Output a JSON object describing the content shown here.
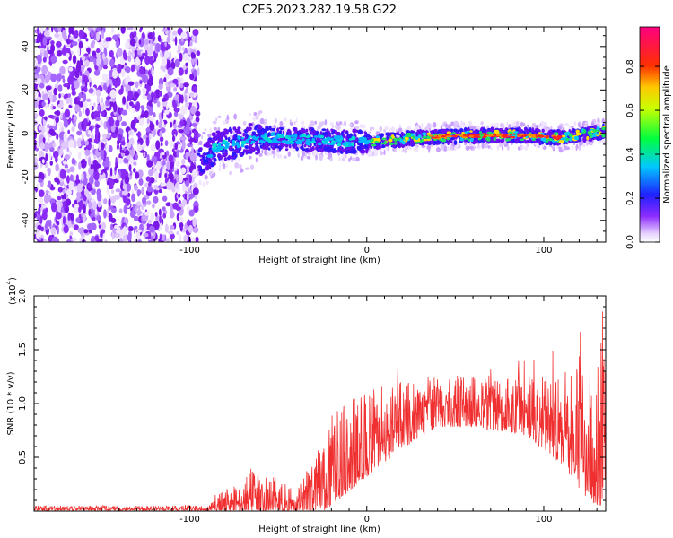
{
  "title": "C2E5.2023.282.19.58.G22",
  "chart_data": [
    {
      "type": "heatmap",
      "xlabel": "Height of straight line (km)",
      "ylabel": "Frequency (Hz)",
      "xlim": [
        -188,
        135
      ],
      "ylim": [
        -50,
        49
      ],
      "xticks": [
        -100,
        0,
        100
      ],
      "yticks": [
        -40,
        -20,
        0,
        20,
        40
      ],
      "colorbar": {
        "label": "Normalized spectral amplitude",
        "range": [
          0,
          0.98
        ],
        "ticks": [
          0.0,
          0.2,
          0.4,
          0.6,
          0.8
        ]
      },
      "description_points": {
        "noise_region_x": [
          -188,
          -95
        ],
        "signal_center_freq": [
          {
            "x": -95,
            "y": -14
          },
          {
            "x": -85,
            "y": -6
          },
          {
            "x": -60,
            "y": -2
          },
          {
            "x": -30,
            "y": -3
          },
          {
            "x": 0,
            "y": -4
          },
          {
            "x": 30,
            "y": -2
          },
          {
            "x": 60,
            "y": -1
          },
          {
            "x": 90,
            "y": -1
          },
          {
            "x": 110,
            "y": -2
          },
          {
            "x": 135,
            "y": 1
          }
        ],
        "peak_amplitude_band_x": [
          35,
          110
        ]
      }
    },
    {
      "type": "line",
      "xlabel": "Height of straight line (km)",
      "ylabel": "SNR (10 * v/v)",
      "multiplier": "(x10",
      "multiplier_exp": "4",
      "xlim": [
        -188,
        135
      ],
      "ylim": [
        0,
        2.0
      ],
      "xticks": [
        -100,
        0,
        100
      ],
      "yticks": [
        0.5,
        1.0,
        1.5,
        2.0
      ],
      "series": [
        {
          "color": "#f03030",
          "envelope": [
            {
              "x": -188,
              "base": 0.02,
              "amp": 0.03
            },
            {
              "x": -90,
              "base": 0.02,
              "amp": 0.03
            },
            {
              "x": -85,
              "base": 0.04,
              "amp": 0.1
            },
            {
              "x": -65,
              "base": 0.1,
              "amp": 0.3
            },
            {
              "x": -50,
              "base": 0.08,
              "amp": 0.22
            },
            {
              "x": -40,
              "base": 0.05,
              "amp": 0.12
            },
            {
              "x": -30,
              "base": 0.15,
              "amp": 0.35
            },
            {
              "x": -20,
              "base": 0.35,
              "amp": 0.55
            },
            {
              "x": 0,
              "base": 0.6,
              "amp": 0.5
            },
            {
              "x": 20,
              "base": 0.8,
              "amp": 0.4
            },
            {
              "x": 40,
              "base": 0.95,
              "amp": 0.3
            },
            {
              "x": 60,
              "base": 0.95,
              "amp": 0.3
            },
            {
              "x": 90,
              "base": 0.9,
              "amp": 0.35
            },
            {
              "x": 110,
              "base": 0.75,
              "amp": 0.55
            },
            {
              "x": 125,
              "base": 0.6,
              "amp": 0.9
            },
            {
              "x": 135,
              "base": 0.55,
              "amp": 1.0
            }
          ]
        }
      ]
    }
  ]
}
